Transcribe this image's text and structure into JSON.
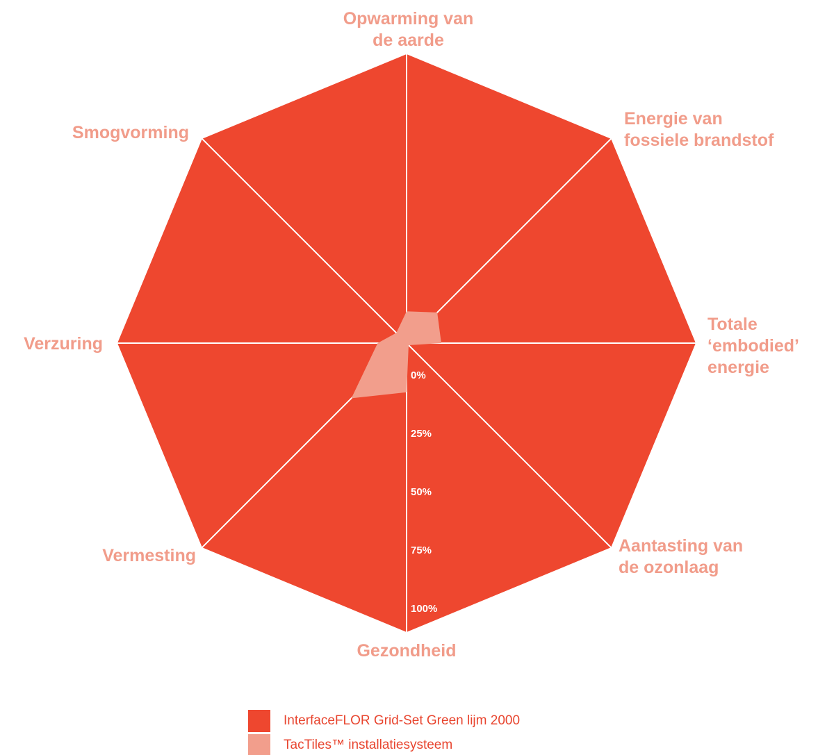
{
  "chart_data": {
    "type": "radar",
    "categories": [
      "Opwarming van de aarde",
      "Energie van fossiele brandstof",
      "Totale ‘embodied’ energie",
      "Aantasting van de ozonlaag",
      "Gezondheid",
      "Vermesting",
      "Verzuring",
      "Smogvorming"
    ],
    "series": [
      {
        "name": "InterfaceFLOR Grid-Set Green lijm 2000",
        "color": "#ee472f",
        "values": [
          100,
          100,
          100,
          100,
          100,
          100,
          100,
          100
        ]
      },
      {
        "name": "TacTiles™ installatiesysteem",
        "color": "#f29e8c",
        "values": [
          11,
          15,
          12,
          1,
          17,
          27,
          10,
          5
        ]
      }
    ],
    "rlim": [
      0,
      100
    ],
    "rticks": [
      {
        "value": 0,
        "label": "0%"
      },
      {
        "value": 25,
        "label": "25%"
      },
      {
        "value": 50,
        "label": "50%"
      },
      {
        "value": 75,
        "label": "75%"
      },
      {
        "value": 100,
        "label": "100%"
      }
    ],
    "grid": true
  }
}
